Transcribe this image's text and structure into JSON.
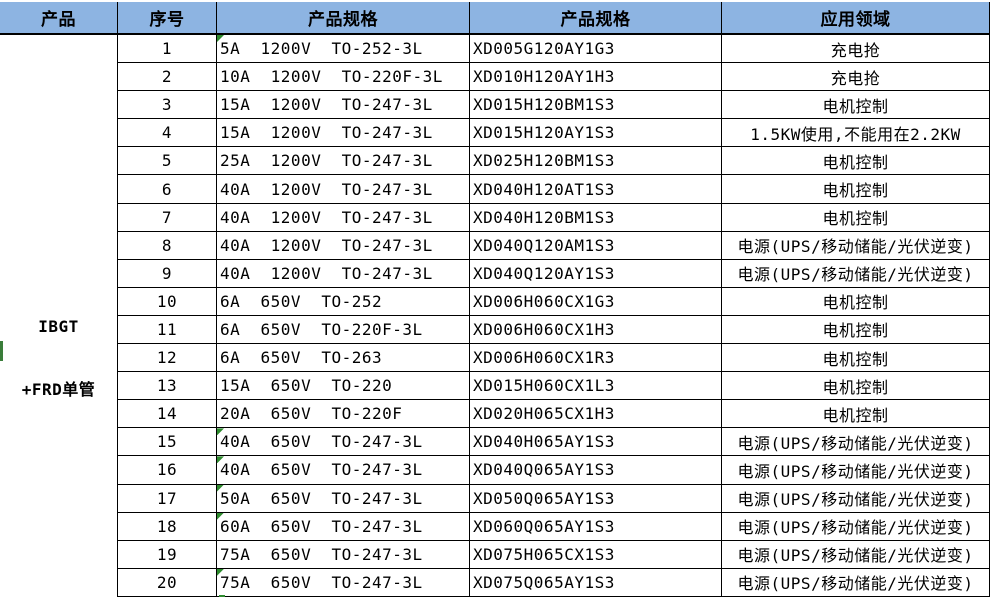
{
  "table": {
    "headers": [
      "产品",
      "序号",
      "产品规格",
      "产品规格",
      "应用领域"
    ],
    "product_group": {
      "line1": "IBGT",
      "line2": "+FRD单管"
    },
    "rows": [
      {
        "no": "1",
        "spec": "5A  1200V  TO-252-3L",
        "part": "XD005G120AY1G3",
        "app": "充电抢",
        "flag": true
      },
      {
        "no": "2",
        "spec": "10A  1200V  TO-220F-3L",
        "part": "XD010H120AY1H3",
        "app": "充电抢",
        "flag": false
      },
      {
        "no": "3",
        "spec": "15A  1200V  TO-247-3L",
        "part": "XD015H120BM1S3",
        "app": "电机控制",
        "flag": false
      },
      {
        "no": "4",
        "spec": "15A  1200V  TO-247-3L",
        "part": "XD015H120AY1S3",
        "app": "1.5KW使用,不能用在2.2KW",
        "flag": false
      },
      {
        "no": "5",
        "spec": "25A  1200V  TO-247-3L",
        "part": "XD025H120BM1S3",
        "app": "电机控制",
        "flag": false
      },
      {
        "no": "6",
        "spec": "40A  1200V  TO-247-3L",
        "part": "XD040H120AT1S3",
        "app": "电机控制",
        "flag": false
      },
      {
        "no": "7",
        "spec": "40A  1200V  TO-247-3L",
        "part": "XD040H120BM1S3",
        "app": "电机控制",
        "flag": false
      },
      {
        "no": "8",
        "spec": "40A  1200V  TO-247-3L",
        "part": "XD040Q120AM1S3",
        "app": "电源(UPS/移动储能/光伏逆变)",
        "flag": false
      },
      {
        "no": "9",
        "spec": "40A  1200V  TO-247-3L",
        "part": "XD040Q120AY1S3",
        "app": "电源(UPS/移动储能/光伏逆变)",
        "flag": false
      },
      {
        "no": "10",
        "spec": "6A  650V  TO-252",
        "part": "XD006H060CX1G3",
        "app": "电机控制",
        "flag": false
      },
      {
        "no": "11",
        "spec": "6A  650V  TO-220F-3L",
        "part": "XD006H060CX1H3",
        "app": "电机控制",
        "flag": false
      },
      {
        "no": "12",
        "spec": "6A  650V  TO-263",
        "part": "XD006H060CX1R3",
        "app": "电机控制",
        "flag": false
      },
      {
        "no": "13",
        "spec": "15A  650V  TO-220",
        "part": "XD015H060CX1L3",
        "app": "电机控制",
        "flag": false
      },
      {
        "no": "14",
        "spec": "20A  650V  TO-220F",
        "part": "XD020H065CX1H3",
        "app": "电机控制",
        "flag": false
      },
      {
        "no": "15",
        "spec": "40A  650V  TO-247-3L",
        "part": "XD040H065AY1S3",
        "app": "电源(UPS/移动储能/光伏逆变)",
        "flag": true
      },
      {
        "no": "16",
        "spec": "40A  650V  TO-247-3L",
        "part": "XD040Q065AY1S3",
        "app": "电源(UPS/移动储能/光伏逆变)",
        "flag": true
      },
      {
        "no": "17",
        "spec": "50A  650V  TO-247-3L",
        "part": "XD050Q065AY1S3",
        "app": "电源(UPS/移动储能/光伏逆变)",
        "flag": true
      },
      {
        "no": "18",
        "spec": "60A  650V  TO-247-3L",
        "part": "XD060Q065AY1S3",
        "app": "电源(UPS/移动储能/光伏逆变)",
        "flag": true
      },
      {
        "no": "19",
        "spec": "75A  650V  TO-247-3L",
        "part": "XD075H065CX1S3",
        "app": "电源(UPS/移动储能/光伏逆变)",
        "flag": false
      },
      {
        "no": "20",
        "spec": "75A  650V  TO-247-3L",
        "part": "XD075Q065AY1S3",
        "app": "电源(UPS/移动储能/光伏逆变)",
        "flag": true
      }
    ],
    "colors": {
      "header_bg": "#8DB4E2",
      "border": "#000000",
      "flag_green": "#2E8B2E",
      "edge_marker_green": "#3A7D3A"
    }
  }
}
